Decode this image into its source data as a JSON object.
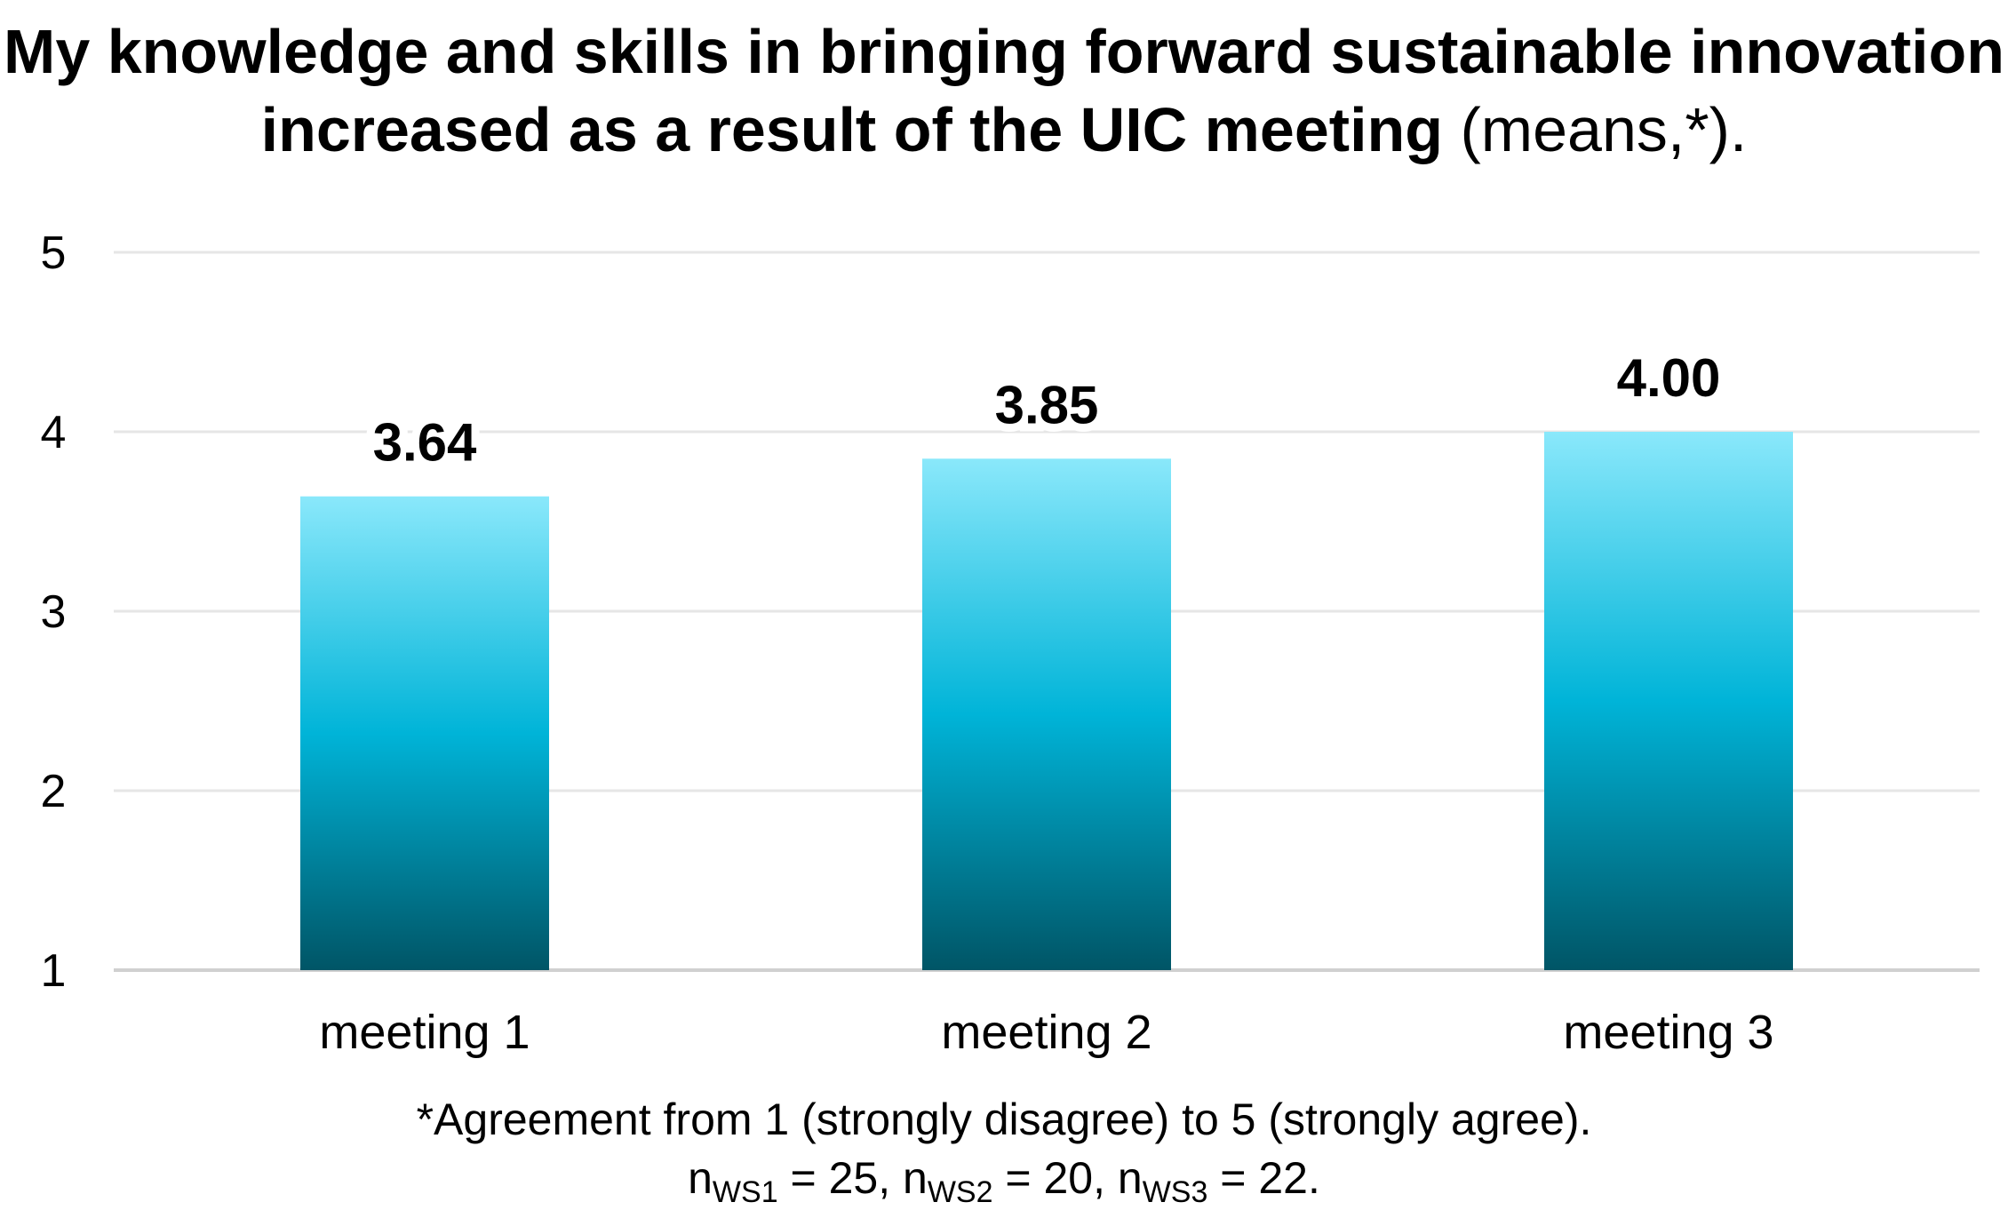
{
  "title": {
    "bold": "My knowledge and skills in bringing forward sustainable innovation increased as a result of the UIC meeting",
    "suffix": "(means,*)."
  },
  "chart_data": {
    "type": "bar",
    "categories": [
      "meeting 1",
      "meeting 2",
      "meeting 3"
    ],
    "values": [
      3.64,
      3.85,
      4.0
    ],
    "value_labels": [
      "3.64",
      "3.85",
      "4.00"
    ],
    "ylim": [
      1,
      5
    ],
    "yticks": [
      1,
      2,
      3,
      4,
      5
    ],
    "grid": true,
    "legend": "none",
    "bar_gradient": [
      "#8ae8fb",
      "#00b4d8",
      "#005566"
    ],
    "xlabel": "",
    "ylabel": ""
  },
  "footnote": {
    "line1": "*Agreement from 1 (strongly disagree) to 5 (strongly agree).",
    "n1_label": "n",
    "n1_sub": "WS1",
    "n1_value": " = 25, ",
    "n2_label": "n",
    "n2_sub": "WS2",
    "n2_value": " = 20, ",
    "n3_label": "n",
    "n3_sub": "WS3",
    "n3_value": " = 22."
  }
}
